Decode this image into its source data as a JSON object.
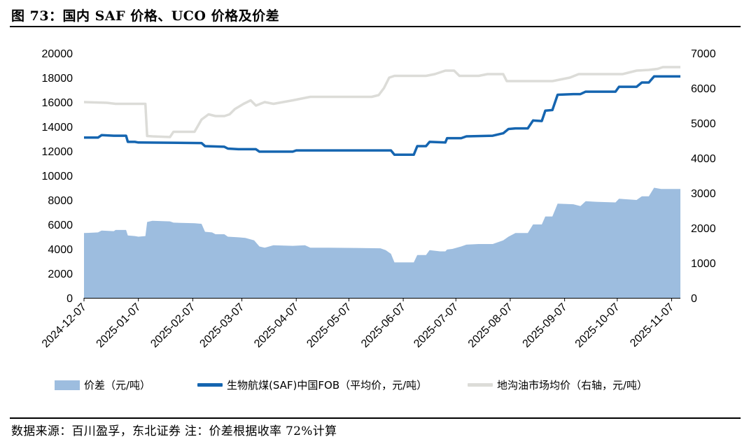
{
  "title": "图 73：国内 SAF 价格、UCO 价格及价差",
  "source": "数据来源：百川盈孚，东北证券 注：价差根据收率 72%计算",
  "colors": {
    "spread": "#9dbddf",
    "saf": "#1565b0",
    "diesel": "#dcdcd8"
  },
  "chart_data": {
    "type": "area+line",
    "x_ticks": [
      "2024-12-07",
      "2025-01-07",
      "2025-02-07",
      "2025-03-07",
      "2025-04-07",
      "2025-05-07",
      "2025-06-07",
      "2025-07-07",
      "2025-08-07",
      "2025-09-07",
      "2025-10-07",
      "2025-11-07"
    ],
    "x_range": [
      "2024-12-07",
      "2025-11-12"
    ],
    "y_left": {
      "min": 0,
      "max": 20000,
      "ticks": [
        "0",
        "2000",
        "4000",
        "6000",
        "8000",
        "10000",
        "12000",
        "14000",
        "16000",
        "18000",
        "20000"
      ]
    },
    "y_right": {
      "min": 0,
      "max": 7000,
      "ticks": [
        "0",
        "1000",
        "2000",
        "3000",
        "4000",
        "5000",
        "6000",
        "7000"
      ]
    },
    "legend": [
      "价差（元/吨）",
      "生物航煤(SAF)中国FOB（平均价，元/吨）",
      "地沟油市场均价（右轴，元/吨）"
    ],
    "series": [
      {
        "name": "价差（元/吨）",
        "type": "area",
        "axis": "left",
        "points": [
          [
            "2024-12-07",
            5300
          ],
          [
            "2024-12-15",
            5350
          ],
          [
            "2024-12-17",
            5500
          ],
          [
            "2024-12-24",
            5450
          ],
          [
            "2024-12-25",
            5550
          ],
          [
            "2024-12-31",
            5550
          ],
          [
            "2025-01-01",
            5100
          ],
          [
            "2025-01-05",
            5050
          ],
          [
            "2025-01-07",
            5000
          ],
          [
            "2025-01-11",
            5050
          ],
          [
            "2025-01-12",
            6200
          ],
          [
            "2025-01-15",
            6300
          ],
          [
            "2025-01-25",
            6250
          ],
          [
            "2025-01-27",
            6150
          ],
          [
            "2025-02-08",
            6100
          ],
          [
            "2025-02-12",
            6050
          ],
          [
            "2025-02-14",
            5400
          ],
          [
            "2025-02-18",
            5350
          ],
          [
            "2025-02-20",
            5200
          ],
          [
            "2025-02-25",
            5200
          ],
          [
            "2025-02-27",
            5000
          ],
          [
            "2025-03-05",
            4950
          ],
          [
            "2025-03-09",
            4900
          ],
          [
            "2025-03-14",
            4700
          ],
          [
            "2025-03-17",
            4200
          ],
          [
            "2025-03-20",
            4100
          ],
          [
            "2025-03-25",
            4300
          ],
          [
            "2025-04-05",
            4250
          ],
          [
            "2025-04-12",
            4300
          ],
          [
            "2025-04-15",
            4100
          ],
          [
            "2025-04-25",
            4100
          ],
          [
            "2025-05-10",
            4080
          ],
          [
            "2025-05-25",
            4050
          ],
          [
            "2025-05-28",
            3900
          ],
          [
            "2025-05-31",
            3600
          ],
          [
            "2025-06-02",
            2900
          ],
          [
            "2025-06-13",
            2900
          ],
          [
            "2025-06-15",
            3500
          ],
          [
            "2025-06-20",
            3500
          ],
          [
            "2025-06-22",
            3900
          ],
          [
            "2025-06-28",
            3800
          ],
          [
            "2025-07-01",
            3800
          ],
          [
            "2025-07-02",
            3950
          ],
          [
            "2025-07-05",
            4000
          ],
          [
            "2025-07-10",
            4200
          ],
          [
            "2025-07-13",
            4350
          ],
          [
            "2025-07-20",
            4400
          ],
          [
            "2025-07-28",
            4400
          ],
          [
            "2025-08-03",
            4700
          ],
          [
            "2025-08-06",
            5000
          ],
          [
            "2025-08-10",
            5300
          ],
          [
            "2025-08-17",
            5300
          ],
          [
            "2025-08-20",
            6000
          ],
          [
            "2025-08-25",
            6000
          ],
          [
            "2025-08-27",
            6650
          ],
          [
            "2025-08-31",
            6650
          ],
          [
            "2025-09-03",
            7700
          ],
          [
            "2025-09-12",
            7650
          ],
          [
            "2025-09-16",
            7500
          ],
          [
            "2025-09-19",
            7900
          ],
          [
            "2025-09-25",
            7850
          ],
          [
            "2025-10-06",
            7800
          ],
          [
            "2025-10-08",
            8100
          ],
          [
            "2025-10-13",
            8050
          ],
          [
            "2025-10-18",
            8000
          ],
          [
            "2025-10-21",
            8300
          ],
          [
            "2025-10-25",
            8300
          ],
          [
            "2025-10-28",
            9000
          ],
          [
            "2025-11-01",
            8900
          ],
          [
            "2025-11-12",
            8900
          ]
        ]
      },
      {
        "name": "生物航煤(SAF)中国FOB（平均价，元/吨）",
        "type": "line",
        "axis": "left",
        "points": [
          [
            "2024-12-07",
            13100
          ],
          [
            "2024-12-15",
            13100
          ],
          [
            "2024-12-17",
            13300
          ],
          [
            "2024-12-24",
            13250
          ],
          [
            "2024-12-31",
            13250
          ],
          [
            "2025-01-01",
            12750
          ],
          [
            "2025-01-05",
            12750
          ],
          [
            "2025-01-07",
            12700
          ],
          [
            "2025-02-12",
            12650
          ],
          [
            "2025-02-14",
            12400
          ],
          [
            "2025-02-25",
            12350
          ],
          [
            "2025-02-27",
            12200
          ],
          [
            "2025-03-05",
            12150
          ],
          [
            "2025-03-15",
            12150
          ],
          [
            "2025-03-17",
            11950
          ],
          [
            "2025-04-05",
            11950
          ],
          [
            "2025-04-07",
            12050
          ],
          [
            "2025-05-28",
            12050
          ],
          [
            "2025-05-31",
            12050
          ],
          [
            "2025-06-02",
            11700
          ],
          [
            "2025-06-13",
            11700
          ],
          [
            "2025-06-15",
            12400
          ],
          [
            "2025-06-20",
            12400
          ],
          [
            "2025-06-22",
            12750
          ],
          [
            "2025-07-01",
            12700
          ],
          [
            "2025-07-02",
            13050
          ],
          [
            "2025-07-10",
            13050
          ],
          [
            "2025-07-13",
            13200
          ],
          [
            "2025-07-28",
            13250
          ],
          [
            "2025-08-03",
            13450
          ],
          [
            "2025-08-06",
            13800
          ],
          [
            "2025-08-10",
            13850
          ],
          [
            "2025-08-17",
            13850
          ],
          [
            "2025-08-20",
            14500
          ],
          [
            "2025-08-25",
            14450
          ],
          [
            "2025-08-27",
            15300
          ],
          [
            "2025-08-31",
            15350
          ],
          [
            "2025-09-03",
            16600
          ],
          [
            "2025-09-12",
            16650
          ],
          [
            "2025-09-16",
            16650
          ],
          [
            "2025-09-19",
            16850
          ],
          [
            "2025-10-06",
            16850
          ],
          [
            "2025-10-08",
            17250
          ],
          [
            "2025-10-18",
            17250
          ],
          [
            "2025-10-21",
            17600
          ],
          [
            "2025-10-25",
            17600
          ],
          [
            "2025-10-28",
            18100
          ],
          [
            "2025-11-12",
            18100
          ]
        ]
      },
      {
        "name": "地沟油市场均价（右轴，元/吨）",
        "type": "line",
        "axis": "right",
        "points": [
          [
            "2024-12-07",
            5600
          ],
          [
            "2024-12-20",
            5580
          ],
          [
            "2024-12-25",
            5550
          ],
          [
            "2025-01-11",
            5550
          ],
          [
            "2025-01-12",
            4630
          ],
          [
            "2025-01-15",
            4620
          ],
          [
            "2025-01-25",
            4600
          ],
          [
            "2025-01-27",
            4750
          ],
          [
            "2025-02-08",
            4750
          ],
          [
            "2025-02-12",
            5100
          ],
          [
            "2025-02-16",
            5250
          ],
          [
            "2025-02-20",
            5200
          ],
          [
            "2025-02-25",
            5200
          ],
          [
            "2025-02-28",
            5250
          ],
          [
            "2025-03-03",
            5400
          ],
          [
            "2025-03-08",
            5550
          ],
          [
            "2025-03-12",
            5650
          ],
          [
            "2025-03-15",
            5500
          ],
          [
            "2025-03-20",
            5600
          ],
          [
            "2025-03-25",
            5550
          ],
          [
            "2025-04-05",
            5650
          ],
          [
            "2025-04-10",
            5700
          ],
          [
            "2025-04-15",
            5750
          ],
          [
            "2025-05-20",
            5750
          ],
          [
            "2025-05-24",
            5800
          ],
          [
            "2025-05-27",
            6000
          ],
          [
            "2025-05-30",
            6300
          ],
          [
            "2025-06-02",
            6350
          ],
          [
            "2025-06-20",
            6350
          ],
          [
            "2025-06-25",
            6400
          ],
          [
            "2025-07-01",
            6500
          ],
          [
            "2025-07-06",
            6500
          ],
          [
            "2025-07-09",
            6350
          ],
          [
            "2025-07-20",
            6350
          ],
          [
            "2025-07-25",
            6400
          ],
          [
            "2025-08-03",
            6400
          ],
          [
            "2025-08-05",
            6200
          ],
          [
            "2025-08-25",
            6200
          ],
          [
            "2025-08-31",
            6200
          ],
          [
            "2025-09-05",
            6250
          ],
          [
            "2025-09-10",
            6300
          ],
          [
            "2025-09-15",
            6400
          ],
          [
            "2025-10-06",
            6400
          ],
          [
            "2025-10-10",
            6400
          ],
          [
            "2025-10-18",
            6500
          ],
          [
            "2025-10-25",
            6520
          ],
          [
            "2025-10-30",
            6550
          ],
          [
            "2025-11-02",
            6600
          ],
          [
            "2025-11-12",
            6600
          ]
        ]
      }
    ]
  }
}
